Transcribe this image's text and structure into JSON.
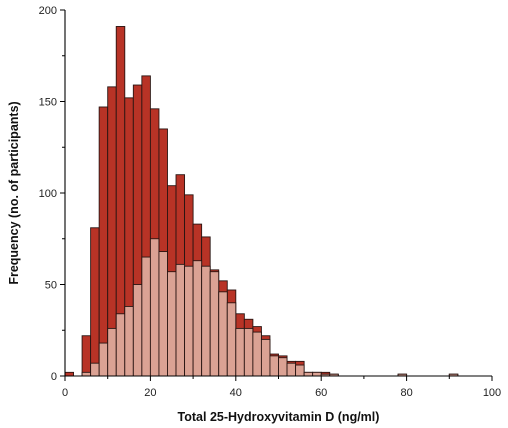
{
  "chart_data": {
    "type": "bar",
    "subtype": "overlaid-histogram",
    "xlabel": "Total 25-Hydroxyvitamin D (ng/ml)",
    "ylabel": "Frequency (no. of participants)",
    "xlim": [
      0,
      100
    ],
    "ylim": [
      0,
      200
    ],
    "xticks": [
      0,
      20,
      40,
      60,
      80,
      100
    ],
    "yticks": [
      0,
      50,
      100,
      150,
      200
    ],
    "bin_width": 2,
    "grid": false,
    "legend": "none",
    "series": [
      {
        "color": "#b83326",
        "bins": [
          {
            "x": 0,
            "value": 2
          },
          {
            "x": 2,
            "value": 0
          },
          {
            "x": 4,
            "value": 22
          },
          {
            "x": 6,
            "value": 81
          },
          {
            "x": 8,
            "value": 147
          },
          {
            "x": 10,
            "value": 158
          },
          {
            "x": 12,
            "value": 191
          },
          {
            "x": 14,
            "value": 152
          },
          {
            "x": 16,
            "value": 159
          },
          {
            "x": 18,
            "value": 164
          },
          {
            "x": 20,
            "value": 146
          },
          {
            "x": 22,
            "value": 135
          },
          {
            "x": 24,
            "value": 104
          },
          {
            "x": 26,
            "value": 110
          },
          {
            "x": 28,
            "value": 99
          },
          {
            "x": 30,
            "value": 83
          },
          {
            "x": 32,
            "value": 76
          },
          {
            "x": 34,
            "value": 58
          },
          {
            "x": 36,
            "value": 52
          },
          {
            "x": 38,
            "value": 47
          },
          {
            "x": 40,
            "value": 34
          },
          {
            "x": 42,
            "value": 31
          },
          {
            "x": 44,
            "value": 27
          },
          {
            "x": 46,
            "value": 22
          },
          {
            "x": 48,
            "value": 12
          },
          {
            "x": 50,
            "value": 11
          },
          {
            "x": 52,
            "value": 8
          },
          {
            "x": 54,
            "value": 8
          },
          {
            "x": 56,
            "value": 2
          },
          {
            "x": 58,
            "value": 2
          },
          {
            "x": 60,
            "value": 2
          },
          {
            "x": 62,
            "value": 1
          },
          {
            "x": 78,
            "value": 1
          },
          {
            "x": 90,
            "value": 1
          }
        ]
      },
      {
        "color": "#dba294",
        "bins": [
          {
            "x": 0,
            "value": 0
          },
          {
            "x": 2,
            "value": 0
          },
          {
            "x": 4,
            "value": 2
          },
          {
            "x": 6,
            "value": 7
          },
          {
            "x": 8,
            "value": 18
          },
          {
            "x": 10,
            "value": 26
          },
          {
            "x": 12,
            "value": 34
          },
          {
            "x": 14,
            "value": 38
          },
          {
            "x": 16,
            "value": 50
          },
          {
            "x": 18,
            "value": 65
          },
          {
            "x": 20,
            "value": 75
          },
          {
            "x": 22,
            "value": 68
          },
          {
            "x": 24,
            "value": 57
          },
          {
            "x": 26,
            "value": 61
          },
          {
            "x": 28,
            "value": 60
          },
          {
            "x": 30,
            "value": 63
          },
          {
            "x": 32,
            "value": 60
          },
          {
            "x": 34,
            "value": 57
          },
          {
            "x": 36,
            "value": 46
          },
          {
            "x": 38,
            "value": 40
          },
          {
            "x": 40,
            "value": 26
          },
          {
            "x": 42,
            "value": 26
          },
          {
            "x": 44,
            "value": 24
          },
          {
            "x": 46,
            "value": 20
          },
          {
            "x": 48,
            "value": 11
          },
          {
            "x": 50,
            "value": 10
          },
          {
            "x": 52,
            "value": 7
          },
          {
            "x": 54,
            "value": 6
          },
          {
            "x": 56,
            "value": 2
          },
          {
            "x": 58,
            "value": 2
          },
          {
            "x": 60,
            "value": 1
          },
          {
            "x": 62,
            "value": 1
          },
          {
            "x": 78,
            "value": 1
          },
          {
            "x": 90,
            "value": 1
          }
        ]
      }
    ]
  }
}
